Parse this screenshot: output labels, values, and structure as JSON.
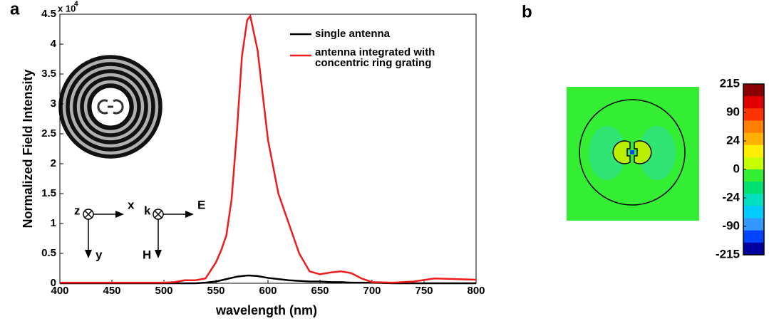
{
  "panel_labels": [
    "a",
    "b"
  ],
  "chart_data": [
    {
      "type": "line",
      "x_label": "wavelength (nm)",
      "y_label": "Normalized Field Intensity",
      "y_scale_label": "x 10",
      "y_scale_exponent": "4",
      "x": [
        400,
        450,
        500,
        510,
        520,
        530,
        540,
        550,
        555,
        560,
        565,
        570,
        575,
        580,
        583,
        590,
        600,
        610,
        620,
        630,
        640,
        650,
        660,
        670,
        680,
        690,
        700,
        720,
        740,
        760,
        780,
        800
      ],
      "series": [
        {
          "name": "single antenna",
          "color": "#000000",
          "values": [
            0,
            0,
            0,
            0,
            0,
            0,
            0.01,
            0.03,
            0.05,
            0.07,
            0.09,
            0.11,
            0.12,
            0.13,
            0.13,
            0.12,
            0.09,
            0.07,
            0.05,
            0.04,
            0.03,
            0.03,
            0.02,
            0.02,
            0.01,
            0.01,
            0.01,
            0,
            0,
            0,
            0,
            0
          ]
        },
        {
          "name": "antenna integrated with concentric ring grating",
          "color": "#ee1c1c",
          "values": [
            0.01,
            0.01,
            0.01,
            0.02,
            0.05,
            0.05,
            0.08,
            0.35,
            0.55,
            0.8,
            1.4,
            2.5,
            3.8,
            4.4,
            4.47,
            3.9,
            2.4,
            1.5,
            1.0,
            0.5,
            0.2,
            0.15,
            0.18,
            0.2,
            0.17,
            0.08,
            0.02,
            0.01,
            0.03,
            0.08,
            0.07,
            0.06
          ]
        }
      ],
      "xlim": [
        400,
        800
      ],
      "xticks": [
        400,
        450,
        500,
        550,
        600,
        650,
        700,
        750,
        800
      ],
      "ylim": [
        0,
        4.5
      ],
      "yticks": [
        0,
        0.5,
        1,
        1.5,
        2,
        2.5,
        3,
        3.5,
        4,
        4.5
      ],
      "annotations": [
        "z",
        "x",
        "y",
        "k",
        "E",
        "H"
      ]
    },
    {
      "type": "colorbar",
      "ticks": [
        215,
        90,
        24,
        0,
        -24,
        -90,
        -215
      ],
      "colors": [
        "#8b0000",
        "#e00000",
        "#ff3300",
        "#ff8000",
        "#ffb000",
        "#ffee00",
        "#c8ff00",
        "#33ee33",
        "#00e070",
        "#00e0c0",
        "#00ccff",
        "#3399ff",
        "#0044ff",
        "#0000a0"
      ]
    }
  ]
}
